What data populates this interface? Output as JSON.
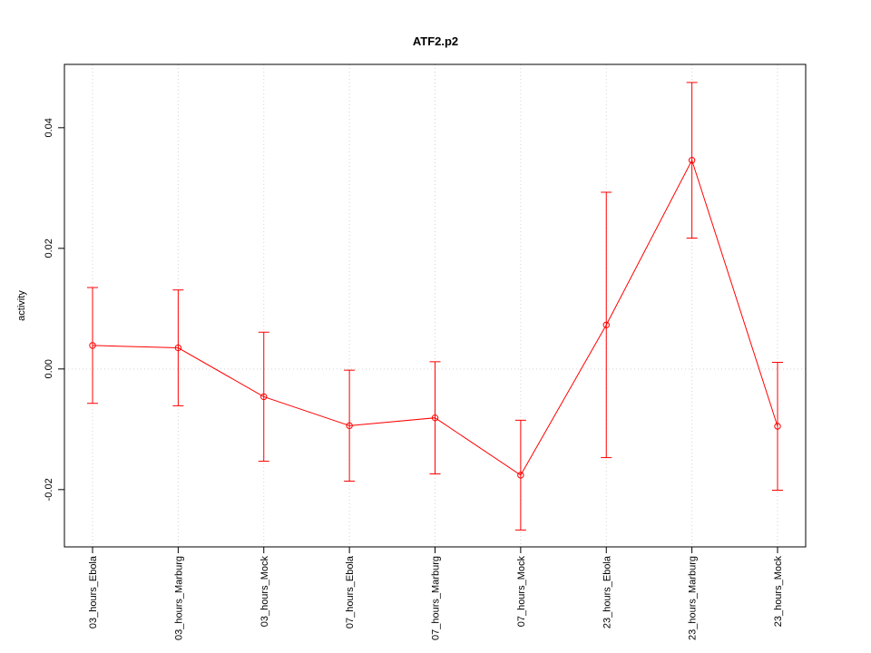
{
  "chart_data": {
    "type": "line",
    "title": "ATF2.p2",
    "y_label": "activity",
    "categories": [
      "03_hours_Ebola",
      "03_hours_Marburg",
      "03_hours_Mock",
      "07_hours_Ebola",
      "07_hours_Marburg",
      "07_hours_Mock",
      "23_hours_Ebola",
      "23_hours_Marburg",
      "23_hours_Mock"
    ],
    "values": [
      0.0039,
      0.0035,
      -0.0046,
      -0.0094,
      -0.0081,
      -0.0176,
      0.0073,
      0.0346,
      -0.0095
    ],
    "errors": [
      0.0096,
      0.0096,
      0.0107,
      0.0092,
      0.0093,
      0.0091,
      0.022,
      0.0129,
      0.0106
    ],
    "color": "#ff0000",
    "ylim": [
      -0.0295,
      0.0505
    ],
    "yticks": [
      -0.02,
      {
        "value": 0,
        "label": "0.00"
      },
      0.02,
      0.04
    ],
    "x_grid": true,
    "reference_line": 0
  }
}
